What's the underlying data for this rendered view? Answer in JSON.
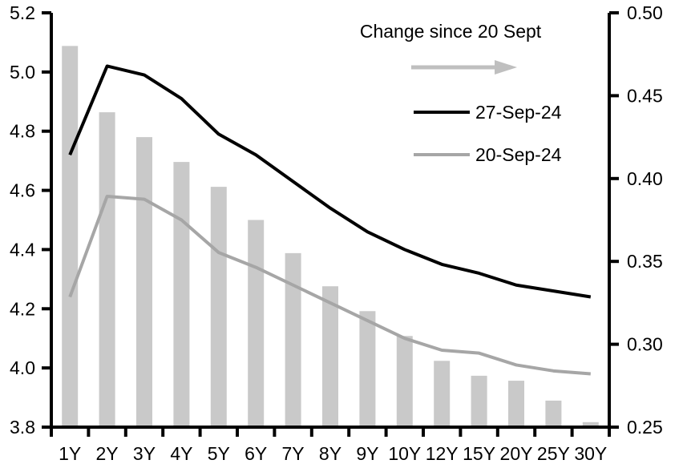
{
  "chart_data": {
    "type": "bar",
    "title": "",
    "categories": [
      "1Y",
      "2Y",
      "3Y",
      "4Y",
      "5Y",
      "6Y",
      "7Y",
      "8Y",
      "9Y",
      "10Y",
      "12Y",
      "15Y",
      "20Y",
      "25Y",
      "30Y"
    ],
    "left_axis": {
      "min": 3.8,
      "max": 5.2,
      "ticks": [
        3.8,
        4.0,
        4.2,
        4.4,
        4.6,
        4.8,
        5.0,
        5.2
      ],
      "tick_labels": [
        "3.8",
        "4.0",
        "4.2",
        "4.4",
        "4.6",
        "4.8",
        "5.0",
        "5.2"
      ]
    },
    "right_axis": {
      "min": 0.25,
      "max": 0.5,
      "ticks": [
        0.25,
        0.3,
        0.35,
        0.4,
        0.45,
        0.5
      ],
      "tick_labels": [
        "0.25",
        "0.30",
        "0.35",
        "0.40",
        "0.45",
        "0.50"
      ]
    },
    "series": [
      {
        "name": "Change since 20 Sept",
        "type": "bar",
        "axis": "right",
        "color": "#c9c9c9",
        "values": [
          0.48,
          0.44,
          0.425,
          0.41,
          0.395,
          0.375,
          0.355,
          0.335,
          0.32,
          0.305,
          0.29,
          0.281,
          0.278,
          0.266,
          0.253
        ]
      },
      {
        "name": "20-Sep-24",
        "type": "line",
        "axis": "left",
        "color": "#a6a6a6",
        "values": [
          4.24,
          4.58,
          4.57,
          4.5,
          4.39,
          4.34,
          4.28,
          4.22,
          4.16,
          4.1,
          4.06,
          4.05,
          4.01,
          3.99,
          3.98
        ]
      },
      {
        "name": "27-Sep-24",
        "type": "line",
        "axis": "left",
        "color": "#000000",
        "values": [
          4.72,
          5.02,
          4.99,
          4.91,
          4.79,
          4.72,
          4.63,
          4.54,
          4.46,
          4.4,
          4.35,
          4.32,
          4.28,
          4.26,
          4.24
        ]
      }
    ],
    "legend": {
      "position": "top-right-inside",
      "title": "Change since 20 Sept",
      "arrow_color": "#bfbfbf",
      "entries": [
        {
          "label": "27-Sep-24",
          "color": "#000000"
        },
        {
          "label": "20-Sep-24",
          "color": "#a6a6a6"
        }
      ]
    },
    "grid": false,
    "axis_color": "#000000"
  }
}
